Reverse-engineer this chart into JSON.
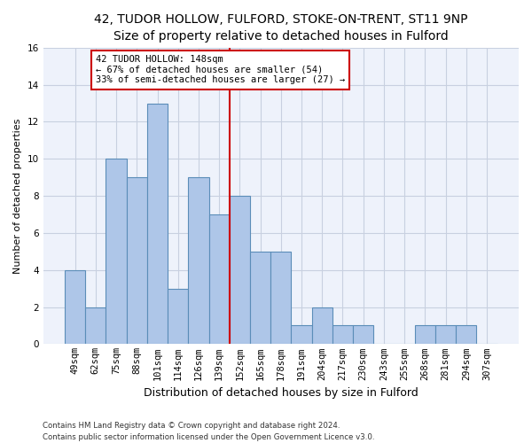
{
  "title1": "42, TUDOR HOLLOW, FULFORD, STOKE-ON-TRENT, ST11 9NP",
  "title2": "Size of property relative to detached houses in Fulford",
  "xlabel": "Distribution of detached houses by size in Fulford",
  "ylabel": "Number of detached properties",
  "bar_labels": [
    "49sqm",
    "62sqm",
    "75sqm",
    "88sqm",
    "101sqm",
    "114sqm",
    "126sqm",
    "139sqm",
    "152sqm",
    "165sqm",
    "178sqm",
    "191sqm",
    "204sqm",
    "217sqm",
    "230sqm",
    "243sqm",
    "255sqm",
    "268sqm",
    "281sqm",
    "294sqm",
    "307sqm"
  ],
  "bar_values": [
    4,
    2,
    10,
    9,
    13,
    3,
    9,
    7,
    8,
    5,
    5,
    1,
    2,
    1,
    1,
    0,
    0,
    1,
    1,
    1,
    0
  ],
  "bar_color": "#aec6e8",
  "bar_edge_color": "#5b8db8",
  "vline_color": "#cc0000",
  "annotation_text": "42 TUDOR HOLLOW: 148sqm\n← 67% of detached houses are smaller (54)\n33% of semi-detached houses are larger (27) →",
  "annotation_box_color": "#ffffff",
  "annotation_box_edge": "#cc0000",
  "ylim": [
    0,
    16
  ],
  "yticks": [
    0,
    2,
    4,
    6,
    8,
    10,
    12,
    14,
    16
  ],
  "footer1": "Contains HM Land Registry data © Crown copyright and database right 2024.",
  "footer2": "Contains public sector information licensed under the Open Government Licence v3.0.",
  "bg_color": "#eef2fb",
  "grid_color": "#c8d0e0",
  "fig_width": 6.0,
  "fig_height": 5.0,
  "title1_fontsize": 10,
  "title2_fontsize": 9,
  "ylabel_fontsize": 8,
  "xlabel_fontsize": 9,
  "tick_fontsize": 7.5,
  "annot_fontsize": 7.5,
  "footer_fontsize": 6.2,
  "vline_x_index": 8
}
